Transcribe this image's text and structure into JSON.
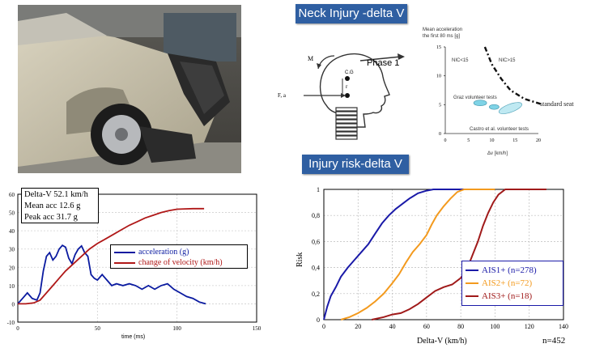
{
  "photo": {
    "subject": "damaged-car-photo"
  },
  "neck": {
    "banner": "Neck Injury -delta V",
    "phase_label": "Phase 1",
    "labels": {
      "m": "M",
      "cg": "C.G",
      "r": "r",
      "fa": "F, a"
    },
    "chart": {
      "ylabel_line1": "Mean acceleration",
      "ylabel_line2": "the first 80 ms [g]",
      "xlabel": "Δv [km/h]",
      "yticks": [
        "0",
        "5",
        "10",
        "15"
      ],
      "xticks": [
        "0",
        "5",
        "10",
        "15",
        "20"
      ],
      "nic_low": "NIC<15",
      "nic_high": "NIC>15",
      "graz": "Graz volunteer tests",
      "castro": "Castro et al. volunteer tests",
      "standard_seat": "standard seat"
    },
    "chart_data": {
      "type": "scatter",
      "xlim": [
        0,
        20
      ],
      "ylim": [
        0,
        15
      ],
      "threshold_line": [
        [
          8.5,
          15
        ],
        [
          10,
          12
        ],
        [
          12,
          9.5
        ],
        [
          14,
          7.5
        ],
        [
          17,
          6
        ],
        [
          19,
          5.5
        ],
        [
          21,
          5
        ]
      ],
      "regions": [
        {
          "name": "Graz volunteer tests",
          "center": [
            7.5,
            5.3
          ],
          "color": "#7fd3e6"
        },
        {
          "name": "Castro et al. volunteer tests",
          "center": [
            14,
            4.4
          ],
          "color": "#bfe9f2"
        },
        {
          "name": "Castro et al. volunteer tests",
          "center": [
            10.5,
            4.6
          ],
          "color": "#7fd3e6"
        }
      ]
    }
  },
  "pulse": {
    "info": [
      "Delta-V 52.1 km/h",
      "Mean acc 12.6 g",
      "Peak acc 31.7 g"
    ],
    "legend": [
      "acceleration (g)",
      "change of velocity (km/h)"
    ],
    "xlabel": "time (ms)",
    "xticks": [
      "0",
      "50",
      "100",
      "150"
    ],
    "yticks": [
      "-10",
      "0",
      "10",
      "20",
      "30",
      "40",
      "50",
      "60"
    ],
    "chart_data": {
      "type": "line",
      "xlabel": "time (ms)",
      "xlim": [
        0,
        150
      ],
      "ylim": [
        -10,
        60
      ],
      "series": [
        {
          "name": "acceleration (g)",
          "color": "#0a1aa0",
          "points": [
            [
              0,
              0
            ],
            [
              3,
              3
            ],
            [
              6,
              6
            ],
            [
              9,
              3
            ],
            [
              12,
              2
            ],
            [
              14,
              6
            ],
            [
              16,
              18
            ],
            [
              18,
              26
            ],
            [
              20,
              28
            ],
            [
              22,
              24
            ],
            [
              24,
              26
            ],
            [
              26,
              30
            ],
            [
              28,
              32
            ],
            [
              30,
              31
            ],
            [
              32,
              25
            ],
            [
              34,
              22
            ],
            [
              36,
              27
            ],
            [
              38,
              30
            ],
            [
              40,
              31.7
            ],
            [
              42,
              28
            ],
            [
              44,
              26
            ],
            [
              46,
              16
            ],
            [
              48,
              14
            ],
            [
              50,
              13
            ],
            [
              53,
              16
            ],
            [
              56,
              13
            ],
            [
              59,
              10
            ],
            [
              62,
              11
            ],
            [
              66,
              10
            ],
            [
              70,
              11
            ],
            [
              74,
              10
            ],
            [
              78,
              8
            ],
            [
              82,
              10
            ],
            [
              86,
              8
            ],
            [
              90,
              10
            ],
            [
              94,
              11
            ],
            [
              98,
              8
            ],
            [
              102,
              6
            ],
            [
              106,
              4
            ],
            [
              110,
              3
            ],
            [
              114,
              1
            ],
            [
              118,
              0
            ]
          ]
        },
        {
          "name": "change of velocity (km/h)",
          "color": "#b01818",
          "points": [
            [
              0,
              0
            ],
            [
              5,
              0
            ],
            [
              10,
              0.5
            ],
            [
              14,
              2
            ],
            [
              18,
              6
            ],
            [
              22,
              10
            ],
            [
              26,
              14
            ],
            [
              30,
              18
            ],
            [
              35,
              22
            ],
            [
              40,
              26
            ],
            [
              45,
              30
            ],
            [
              50,
              33
            ],
            [
              55,
              35.5
            ],
            [
              60,
              38
            ],
            [
              65,
              40.5
            ],
            [
              70,
              43
            ],
            [
              75,
              45
            ],
            [
              80,
              47
            ],
            [
              85,
              48.5
            ],
            [
              90,
              50
            ],
            [
              95,
              51
            ],
            [
              100,
              51.8
            ],
            [
              105,
              52
            ],
            [
              110,
              52.1
            ],
            [
              117,
              52.1
            ]
          ]
        }
      ]
    }
  },
  "risk": {
    "banner": "Injury risk-delta V",
    "ylabel": "Risk",
    "xlabel": "Delta-V (km/h)",
    "n_total": "n=452",
    "xticks": [
      "0",
      "20",
      "40",
      "60",
      "80",
      "100",
      "120",
      "140"
    ],
    "yticks": [
      "0",
      "0,2",
      "0,4",
      "0,6",
      "0,8",
      "1"
    ],
    "legend": [
      "AIS1+ (n=278)",
      "AIS2+ (n=72)",
      "AIS3+ (n=18)"
    ],
    "chart_data": {
      "type": "line",
      "xlabel": "Delta-V (km/h)",
      "ylabel": "Risk",
      "xlim": [
        0,
        140
      ],
      "ylim": [
        0,
        1
      ],
      "series": [
        {
          "name": "AIS1+ (n=278)",
          "color": "#1a1aa8",
          "points": [
            [
              0,
              0
            ],
            [
              2,
              0.1
            ],
            [
              4,
              0.18
            ],
            [
              7,
              0.25
            ],
            [
              10,
              0.33
            ],
            [
              14,
              0.4
            ],
            [
              18,
              0.46
            ],
            [
              22,
              0.52
            ],
            [
              26,
              0.58
            ],
            [
              30,
              0.66
            ],
            [
              34,
              0.74
            ],
            [
              38,
              0.8
            ],
            [
              42,
              0.85
            ],
            [
              46,
              0.89
            ],
            [
              50,
              0.93
            ],
            [
              55,
              0.97
            ],
            [
              60,
              0.99
            ],
            [
              64,
              1
            ],
            [
              90,
              1
            ]
          ]
        },
        {
          "name": "AIS2+ (n=72)",
          "color": "#f39a1e",
          "points": [
            [
              10,
              0
            ],
            [
              15,
              0.02
            ],
            [
              20,
              0.05
            ],
            [
              25,
              0.09
            ],
            [
              30,
              0.14
            ],
            [
              35,
              0.2
            ],
            [
              40,
              0.28
            ],
            [
              44,
              0.35
            ],
            [
              48,
              0.44
            ],
            [
              52,
              0.52
            ],
            [
              56,
              0.58
            ],
            [
              60,
              0.65
            ],
            [
              63,
              0.73
            ],
            [
              66,
              0.8
            ],
            [
              70,
              0.87
            ],
            [
              74,
              0.93
            ],
            [
              78,
              0.98
            ],
            [
              82,
              1
            ],
            [
              100,
              1
            ]
          ]
        },
        {
          "name": "AIS3+ (n=18)",
          "color": "#a01a1a",
          "points": [
            [
              28,
              0
            ],
            [
              35,
              0.02
            ],
            [
              40,
              0.04
            ],
            [
              45,
              0.05
            ],
            [
              50,
              0.08
            ],
            [
              55,
              0.12
            ],
            [
              60,
              0.17
            ],
            [
              65,
              0.22
            ],
            [
              70,
              0.25
            ],
            [
              75,
              0.27
            ],
            [
              80,
              0.32
            ],
            [
              84,
              0.4
            ],
            [
              87,
              0.5
            ],
            [
              90,
              0.6
            ],
            [
              93,
              0.72
            ],
            [
              96,
              0.82
            ],
            [
              99,
              0.9
            ],
            [
              102,
              0.96
            ],
            [
              106,
              1
            ],
            [
              130,
              1
            ]
          ]
        }
      ]
    }
  }
}
